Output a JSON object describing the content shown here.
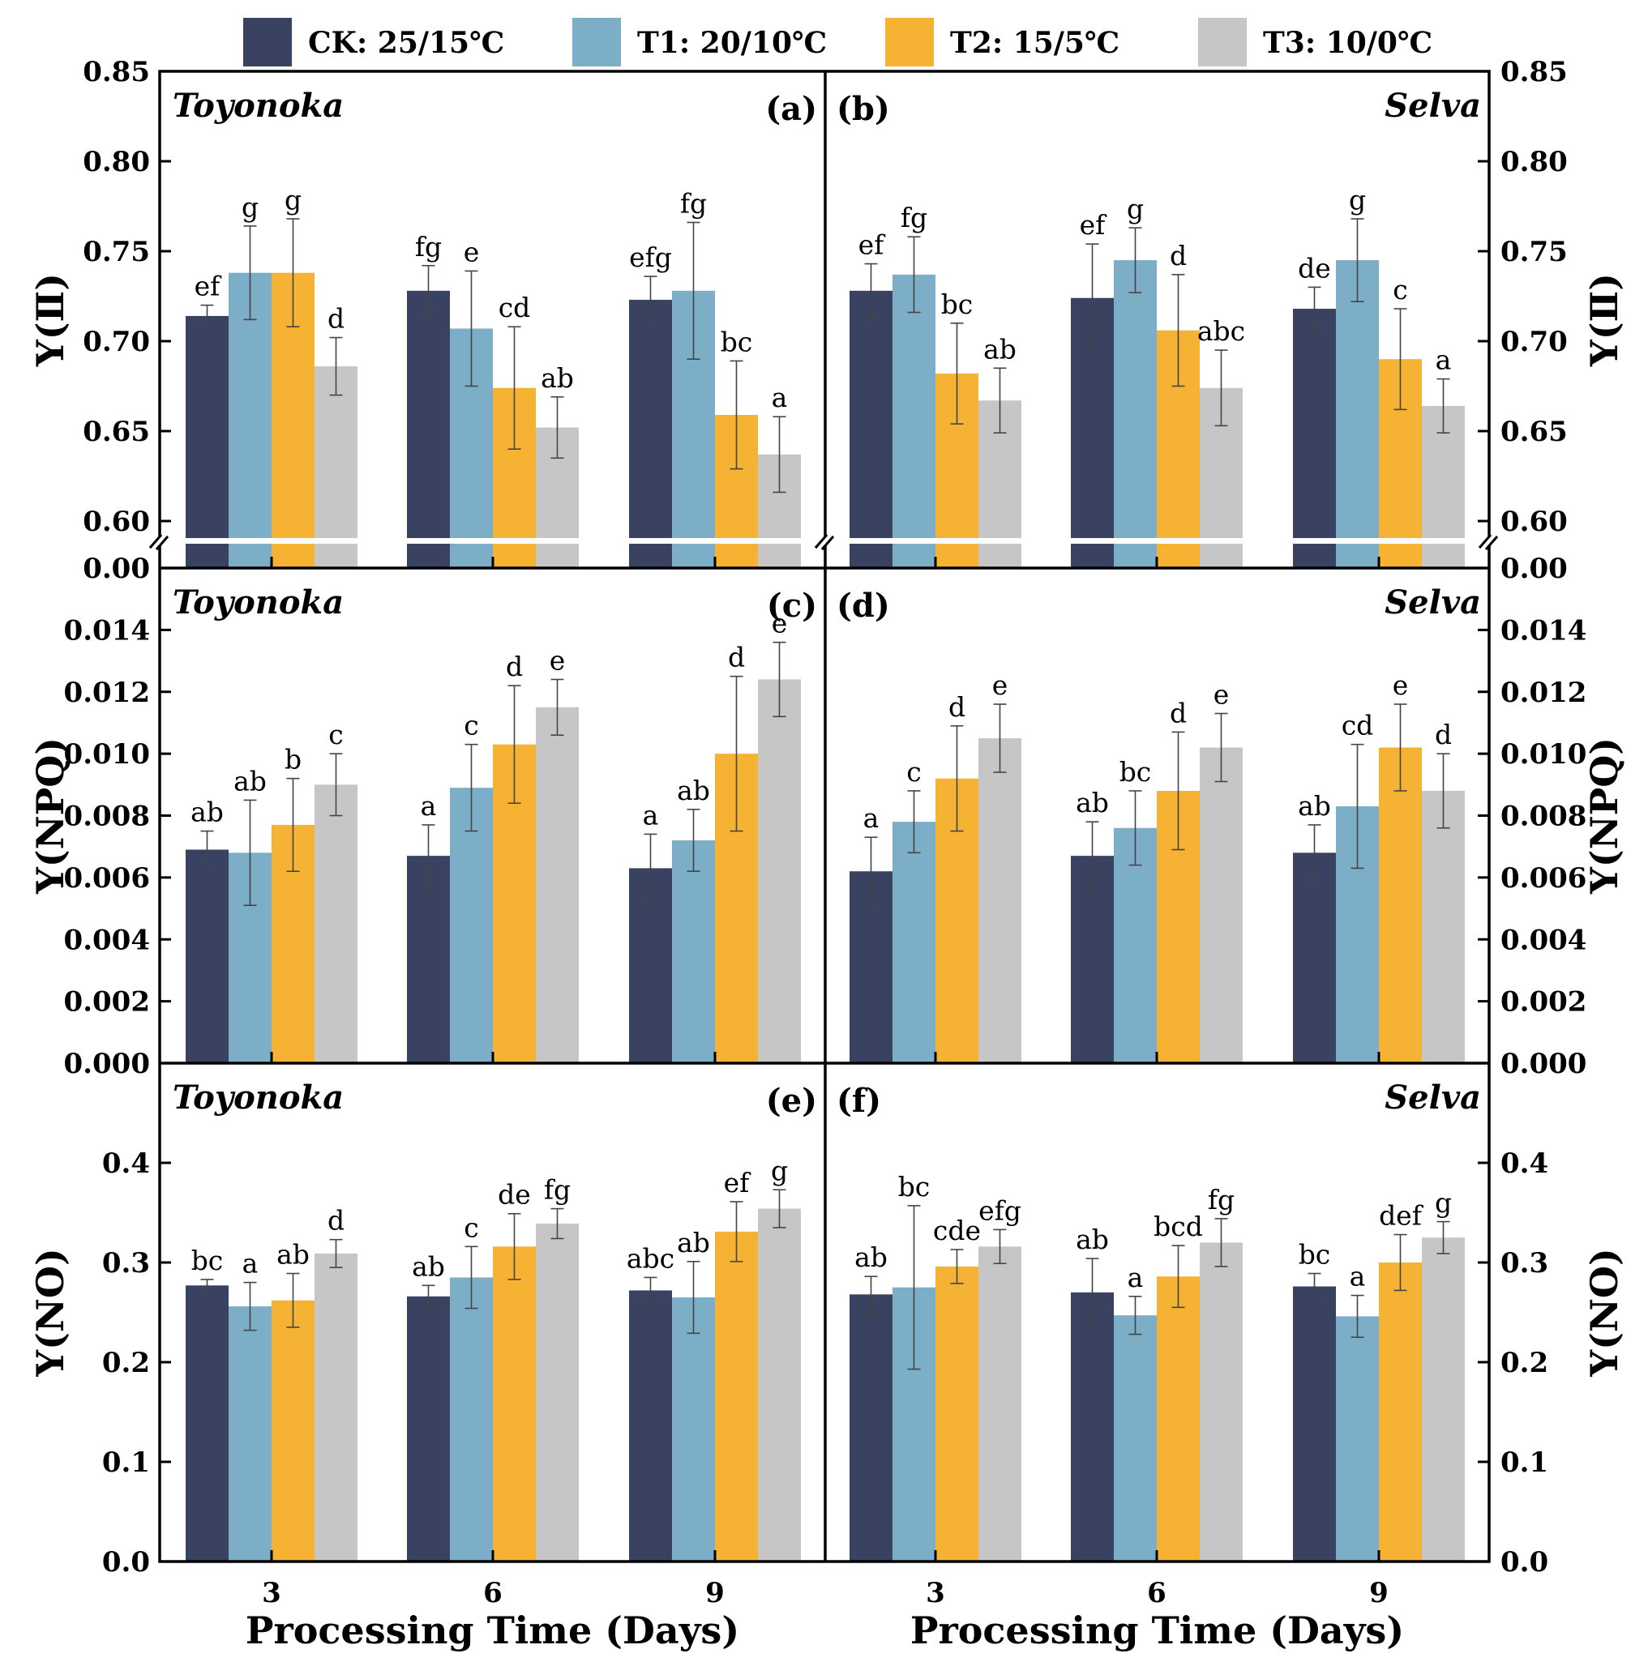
{
  "legend": [
    {
      "key": "CK",
      "label": "CK: 25/15℃",
      "color": "#3a4262"
    },
    {
      "key": "T1",
      "label": "T1: 20/10℃",
      "color": "#7caec8"
    },
    {
      "key": "T2",
      "label": "T2: 15/5℃",
      "color": "#f6b333"
    },
    {
      "key": "T3",
      "label": "T3: 10/0℃",
      "color": "#c6c6c6"
    }
  ],
  "xlabel": "Processing Time (Days)",
  "chart_data": [
    {
      "type": "bar",
      "panel": "(a)",
      "cultivar": "Toyonoka",
      "ylabel": "Y(Ⅱ)",
      "categories": [
        "3",
        "6",
        "9"
      ],
      "ylim": [
        0.0,
        0.85
      ],
      "axis_break": [
        0.0,
        0.59
      ],
      "yticks": [
        "0.00",
        "0.60",
        "0.65",
        "0.70",
        "0.75",
        "0.80",
        "0.85"
      ],
      "series": [
        {
          "name": "CK: 25/15℃",
          "values": [
            0.714,
            0.728,
            0.723
          ],
          "errors": [
            0.006,
            0.014,
            0.013
          ],
          "letters": [
            "ef",
            "fg",
            "efg"
          ]
        },
        {
          "name": "T1: 20/10℃",
          "values": [
            0.738,
            0.707,
            0.728
          ],
          "errors": [
            0.026,
            0.032,
            0.038
          ],
          "letters": [
            "g",
            "e",
            "fg"
          ]
        },
        {
          "name": "T2: 15/5℃",
          "values": [
            0.738,
            0.674,
            0.659
          ],
          "errors": [
            0.03,
            0.034,
            0.03
          ],
          "letters": [
            "g",
            "cd",
            "bc"
          ]
        },
        {
          "name": "T3: 10/0℃",
          "values": [
            0.686,
            0.652,
            0.637
          ],
          "errors": [
            0.016,
            0.017,
            0.021
          ],
          "letters": [
            "d",
            "ab",
            "a"
          ]
        }
      ]
    },
    {
      "type": "bar",
      "panel": "(b)",
      "cultivar": "Selva",
      "ylabel": "Y(Ⅱ)",
      "categories": [
        "3",
        "6",
        "9"
      ],
      "ylim": [
        0.0,
        0.85
      ],
      "axis_break": [
        0.0,
        0.59
      ],
      "yticks": [
        "0.00",
        "0.60",
        "0.65",
        "0.70",
        "0.75",
        "0.80",
        "0.85"
      ],
      "series": [
        {
          "name": "CK: 25/15℃",
          "values": [
            0.728,
            0.724,
            0.718
          ],
          "errors": [
            0.015,
            0.03,
            0.012
          ],
          "letters": [
            "ef",
            "ef",
            "de"
          ]
        },
        {
          "name": "T1: 20/10℃",
          "values": [
            0.737,
            0.745,
            0.745
          ],
          "errors": [
            0.021,
            0.018,
            0.023
          ],
          "letters": [
            "fg",
            "g",
            "g"
          ]
        },
        {
          "name": "T2: 15/5℃",
          "values": [
            0.682,
            0.706,
            0.69
          ],
          "errors": [
            0.028,
            0.031,
            0.028
          ],
          "letters": [
            "bc",
            "d",
            "c"
          ]
        },
        {
          "name": "T3: 10/0℃",
          "values": [
            0.667,
            0.674,
            0.664
          ],
          "errors": [
            0.018,
            0.021,
            0.015
          ],
          "letters": [
            "ab",
            "abc",
            "a"
          ]
        }
      ]
    },
    {
      "type": "bar",
      "panel": "(c)",
      "cultivar": "Toyonoka",
      "ylabel": "Y(NPQ)",
      "categories": [
        "3",
        "6",
        "9"
      ],
      "ylim": [
        0.0,
        0.016
      ],
      "yticks": [
        "0.000",
        "0.002",
        "0.004",
        "0.006",
        "0.008",
        "0.010",
        "0.012",
        "0.014"
      ],
      "series": [
        {
          "name": "CK: 25/15℃",
          "values": [
            0.0069,
            0.0067,
            0.0063
          ],
          "errors": [
            0.0006,
            0.001,
            0.0011
          ],
          "letters": [
            "ab",
            "a",
            "a"
          ]
        },
        {
          "name": "T1: 20/10℃",
          "values": [
            0.0068,
            0.0089,
            0.0072
          ],
          "errors": [
            0.0017,
            0.0014,
            0.001
          ],
          "letters": [
            "ab",
            "c",
            "ab"
          ]
        },
        {
          "name": "T2: 15/5℃",
          "values": [
            0.0077,
            0.0103,
            0.01
          ],
          "errors": [
            0.0015,
            0.0019,
            0.0025
          ],
          "letters": [
            "b",
            "d",
            "d"
          ]
        },
        {
          "name": "T3: 10/0℃",
          "values": [
            0.009,
            0.0115,
            0.0124
          ],
          "errors": [
            0.001,
            0.0009,
            0.0012
          ],
          "letters": [
            "c",
            "e",
            "e"
          ]
        }
      ]
    },
    {
      "type": "bar",
      "panel": "(d)",
      "cultivar": "Selva",
      "ylabel": "Y(NPQ)",
      "categories": [
        "3",
        "6",
        "9"
      ],
      "ylim": [
        0.0,
        0.016
      ],
      "yticks": [
        "0.000",
        "0.002",
        "0.004",
        "0.006",
        "0.008",
        "0.010",
        "0.012",
        "0.014"
      ],
      "series": [
        {
          "name": "CK: 25/15℃",
          "values": [
            0.0062,
            0.0067,
            0.0068
          ],
          "errors": [
            0.0011,
            0.0011,
            0.0009
          ],
          "letters": [
            "a",
            "ab",
            "ab"
          ]
        },
        {
          "name": "T1: 20/10℃",
          "values": [
            0.0078,
            0.0076,
            0.0083
          ],
          "errors": [
            0.001,
            0.0012,
            0.002
          ],
          "letters": [
            "c",
            "bc",
            "cd"
          ]
        },
        {
          "name": "T2: 15/5℃",
          "values": [
            0.0092,
            0.0088,
            0.0102
          ],
          "errors": [
            0.0017,
            0.0019,
            0.0014
          ],
          "letters": [
            "d",
            "d",
            "e"
          ]
        },
        {
          "name": "T3: 10/0℃",
          "values": [
            0.0105,
            0.0102,
            0.0088
          ],
          "errors": [
            0.0011,
            0.0011,
            0.0012
          ],
          "letters": [
            "e",
            "e",
            "d"
          ]
        }
      ]
    },
    {
      "type": "bar",
      "panel": "(e)",
      "cultivar": "Toyonoka",
      "ylabel": "Y(NO)",
      "categories": [
        "3",
        "6",
        "9"
      ],
      "ylim": [
        0.0,
        0.5
      ],
      "yticks": [
        "0.0",
        "0.1",
        "0.2",
        "0.3",
        "0.4"
      ],
      "series": [
        {
          "name": "CK: 25/15℃",
          "values": [
            0.277,
            0.266,
            0.272
          ],
          "errors": [
            0.006,
            0.011,
            0.013
          ],
          "letters": [
            "bc",
            "ab",
            "abc"
          ]
        },
        {
          "name": "T1: 20/10℃",
          "values": [
            0.256,
            0.285,
            0.265
          ],
          "errors": [
            0.024,
            0.031,
            0.036
          ],
          "letters": [
            "a",
            "c",
            "ab"
          ]
        },
        {
          "name": "T2: 15/5℃",
          "values": [
            0.262,
            0.316,
            0.331
          ],
          "errors": [
            0.027,
            0.033,
            0.03
          ],
          "letters": [
            "ab",
            "de",
            "ef"
          ]
        },
        {
          "name": "T3: 10/0℃",
          "values": [
            0.309,
            0.339,
            0.354
          ],
          "errors": [
            0.014,
            0.015,
            0.019
          ],
          "letters": [
            "d",
            "fg",
            "g"
          ]
        }
      ]
    },
    {
      "type": "bar",
      "panel": "(f)",
      "cultivar": "Selva",
      "ylabel": "Y(NO)",
      "categories": [
        "3",
        "6",
        "9"
      ],
      "ylim": [
        0.0,
        0.5
      ],
      "yticks": [
        "0.0",
        "0.1",
        "0.2",
        "0.3",
        "0.4"
      ],
      "series": [
        {
          "name": "CK: 25/15℃",
          "values": [
            0.268,
            0.27,
            0.276
          ],
          "errors": [
            0.018,
            0.034,
            0.013
          ],
          "letters": [
            "ab",
            "ab",
            "bc"
          ]
        },
        {
          "name": "T1: 20/10℃",
          "values": [
            0.275,
            0.247,
            0.246
          ],
          "errors": [
            0.082,
            0.019,
            0.021
          ],
          "letters": [
            "bc",
            "a",
            "a"
          ]
        },
        {
          "name": "T2: 15/5℃",
          "values": [
            0.296,
            0.286,
            0.3
          ],
          "errors": [
            0.017,
            0.031,
            0.028
          ],
          "letters": [
            "cde",
            "bcd",
            "def"
          ]
        },
        {
          "name": "T3: 10/0℃",
          "values": [
            0.316,
            0.32,
            0.325
          ],
          "errors": [
            0.017,
            0.024,
            0.016
          ],
          "letters": [
            "efg",
            "fg",
            "g"
          ]
        }
      ]
    }
  ]
}
